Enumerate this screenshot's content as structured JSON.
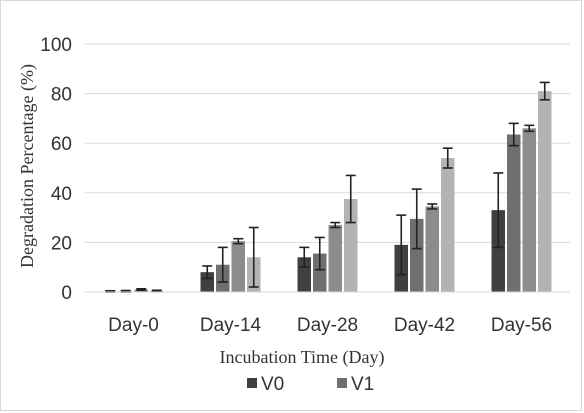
{
  "chart_data": {
    "type": "bar",
    "categories": [
      "Day-0",
      "Day-14",
      "Day-28",
      "Day-42",
      "Day-56"
    ],
    "xlabel": "Incubation Time (Day)",
    "ylabel": "Degradation Percentage (%)",
    "ylim": [
      0,
      100
    ],
    "yticks": [
      "0",
      "20",
      "40",
      "60",
      "80",
      "100"
    ],
    "grid": true,
    "legend_position": "bottom",
    "series": [
      {
        "name": "V0",
        "values": [
          0.2,
          8,
          14,
          19,
          33
        ],
        "errors": [
          0.3,
          2.5,
          4,
          12,
          15
        ],
        "color": "#404040"
      },
      {
        "name": "V1",
        "values": [
          0.3,
          11,
          15.5,
          29.5,
          63.5
        ],
        "errors": [
          0.3,
          7,
          6.5,
          12,
          4.5
        ],
        "color": "#6f6f6f"
      },
      {
        "name": "",
        "values": [
          1,
          20.5,
          27,
          34.5,
          66
        ],
        "errors": [
          0.3,
          1,
          1,
          1,
          1.2
        ],
        "color": "#8c8c8c"
      },
      {
        "name": "",
        "values": [
          0.4,
          14,
          37.5,
          54,
          81
        ],
        "errors": [
          0.3,
          12,
          9.5,
          4,
          3.5
        ],
        "color": "#b3b3b3"
      }
    ]
  }
}
